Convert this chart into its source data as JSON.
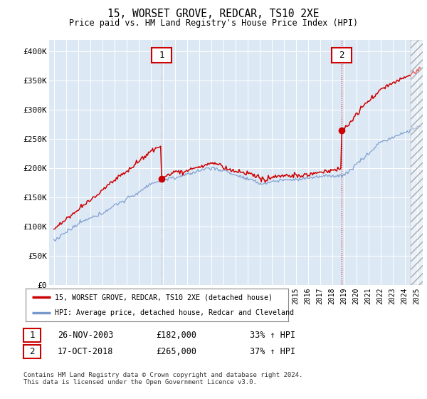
{
  "title": "15, WORSET GROVE, REDCAR, TS10 2XE",
  "subtitle": "Price paid vs. HM Land Registry's House Price Index (HPI)",
  "ylabel_ticks": [
    "£0",
    "£50K",
    "£100K",
    "£150K",
    "£200K",
    "£250K",
    "£300K",
    "£350K",
    "£400K"
  ],
  "ylim": [
    0,
    420000
  ],
  "xlim_start": 1994.6,
  "xlim_end": 2025.5,
  "purchase1_date": 2003.9,
  "purchase1_price": 182000,
  "purchase2_date": 2018.79,
  "purchase2_price": 265000,
  "legend1": "15, WORSET GROVE, REDCAR, TS10 2XE (detached house)",
  "legend2": "HPI: Average price, detached house, Redcar and Cleveland",
  "annotation1_date": "26-NOV-2003",
  "annotation1_price": "£182,000",
  "annotation1_hpi": "33% ↑ HPI",
  "annotation2_date": "17-OCT-2018",
  "annotation2_price": "£265,000",
  "annotation2_hpi": "37% ↑ HPI",
  "footer": "Contains HM Land Registry data © Crown copyright and database right 2024.\nThis data is licensed under the Open Government Licence v3.0.",
  "hpi_color": "#7799cc",
  "price_color": "#cc0000",
  "bg_color": "#dde8f5",
  "vline_color": "#cc0000",
  "box_color": "#cc0000",
  "grid_color": "#ffffff"
}
